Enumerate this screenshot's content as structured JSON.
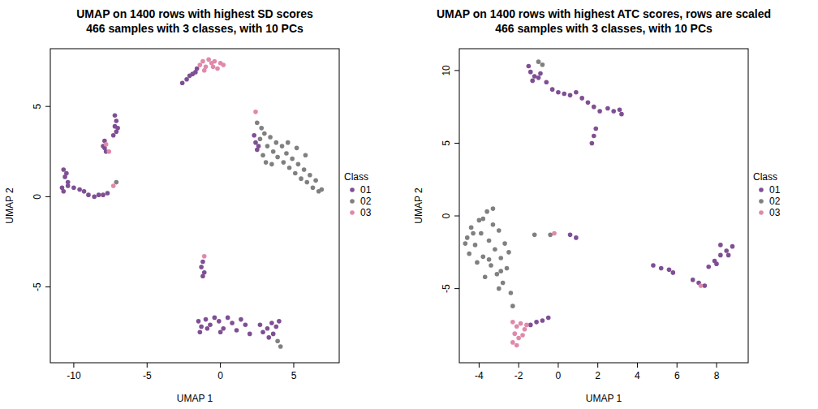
{
  "chart_data": [
    {
      "type": "scatter",
      "title": "UMAP on 1400 rows with highest SD scores",
      "subtitle": "466 samples with 3 classes, with 10 PCs",
      "x_label": "UMAP 1",
      "y_label": "UMAP 2",
      "legend_title": "Class",
      "legend": "right",
      "xlim": [
        -11.6,
        8.1
      ],
      "ylim": [
        -9.2,
        8.2
      ],
      "xticks": [
        -10,
        -5,
        0,
        5
      ],
      "yticks": [
        -5,
        0,
        5
      ],
      "series": [
        {
          "name": "01",
          "color": "#7f4f94",
          "marker": "circle",
          "x": [
            -2.6,
            -2.3,
            -2.1,
            -1.9,
            -1.7,
            -1.6,
            2.3,
            2.4,
            2.5,
            2.6,
            -7.2,
            -7.1,
            -7.2,
            -7.1,
            -7.3,
            -7.0,
            -7.9,
            -8.0,
            -7.8,
            -7.9,
            -10.7,
            -10.5,
            -10.6,
            -10.4,
            -10.8,
            -10.7,
            -10.4,
            -10.0,
            -9.6,
            -9.3,
            -9.0,
            -8.6,
            -8.3,
            -8.0,
            -7.7,
            -1.2,
            -1.3,
            -1.1,
            -1.2,
            -1.5,
            -1.3,
            -1.0,
            -0.7,
            -0.4,
            -0.1,
            0.2,
            0.5,
            0.8,
            1.1,
            1.4,
            1.7,
            2.0,
            -1.4,
            -0.9,
            0.0,
            2.7,
            2.9,
            3.2,
            3.5,
            3.8,
            3.3,
            3.6,
            4.0
          ],
          "y": [
            6.3,
            6.5,
            6.7,
            6.8,
            6.9,
            7.1,
            3.4,
            3.0,
            2.6,
            2.8,
            4.5,
            4.2,
            3.9,
            3.6,
            3.4,
            3.8,
            3.1,
            2.8,
            2.5,
            2.7,
            1.5,
            1.3,
            1.1,
            0.8,
            0.5,
            0.3,
            0.6,
            0.5,
            0.4,
            0.3,
            0.1,
            0.0,
            0.1,
            0.1,
            0.2,
            -3.6,
            -3.9,
            -4.2,
            -4.4,
            -6.9,
            -7.2,
            -6.8,
            -7.1,
            -6.7,
            -6.9,
            -7.3,
            -6.7,
            -7.0,
            -7.4,
            -6.8,
            -7.1,
            -7.6,
            -7.5,
            -7.3,
            -7.5,
            -7.1,
            -7.5,
            -7.3,
            -7.0,
            -7.2,
            -7.8,
            -7.6,
            -6.9
          ]
        },
        {
          "name": "02",
          "color": "#808080",
          "marker": "circle",
          "x": [
            2.5,
            2.8,
            2.7,
            3.0,
            3.2,
            3.4,
            3.6,
            3.8,
            3.9,
            4.2,
            4.3,
            4.5,
            4.7,
            4.9,
            5.1,
            5.3,
            5.5,
            5.7,
            5.9,
            6.1,
            6.3,
            6.5,
            6.7,
            6.9,
            3.1,
            2.9,
            3.5,
            4.6,
            5.2,
            5.8,
            -7.1,
            3.9,
            4.1
          ],
          "y": [
            4.1,
            3.8,
            3.2,
            3.5,
            2.8,
            3.3,
            2.5,
            3.0,
            2.2,
            2.8,
            1.9,
            2.4,
            1.6,
            2.1,
            1.3,
            1.8,
            1.0,
            1.5,
            0.8,
            1.2,
            0.5,
            0.9,
            0.3,
            0.4,
            1.9,
            2.3,
            1.8,
            3.0,
            2.7,
            2.3,
            0.8,
            -8.0,
            -8.3
          ]
        },
        {
          "name": "03",
          "color": "#e089aa",
          "marker": "circle",
          "x": [
            -1.4,
            -1.2,
            -1.0,
            -0.8,
            -0.6,
            -0.4,
            -0.2,
            0.0,
            0.2,
            -1.1,
            -0.5,
            2.4,
            -7.8,
            -7.6,
            -7.3,
            -1.1
          ],
          "y": [
            7.3,
            7.5,
            7.2,
            7.6,
            7.4,
            7.5,
            7.1,
            7.4,
            7.3,
            7.0,
            7.2,
            4.7,
            2.9,
            2.5,
            0.6,
            -3.3
          ]
        }
      ]
    },
    {
      "type": "scatter",
      "title": "UMAP on 1400 rows with highest ATC scores, rows are scaled",
      "subtitle": "466 samples with 3 classes, with 10 PCs",
      "x_label": "UMAP 1",
      "y_label": "UMAP 2",
      "legend_title": "Class",
      "legend": "right",
      "xlim": [
        -5.0,
        9.6
      ],
      "ylim": [
        -10.1,
        11.5
      ],
      "xticks": [
        -4,
        -2,
        0,
        2,
        4,
        6,
        8
      ],
      "yticks": [
        -5,
        0,
        5,
        10
      ],
      "series": [
        {
          "name": "01",
          "color": "#7f4f94",
          "marker": "circle",
          "x": [
            -1.5,
            -1.4,
            -1.2,
            -1.3,
            -1.0,
            -0.9,
            -0.6,
            -0.3,
            0.0,
            0.3,
            0.6,
            0.9,
            1.2,
            1.5,
            1.8,
            2.1,
            2.5,
            2.8,
            3.1,
            3.2,
            1.9,
            1.8,
            1.7,
            0.6,
            0.9,
            -1.4,
            -1.1,
            -0.8,
            -0.5,
            4.8,
            5.2,
            5.6,
            5.8,
            6.8,
            7.1,
            7.4,
            7.6,
            7.9,
            8.2,
            8.5,
            8.8,
            8.2,
            8.6,
            8.0
          ],
          "y": [
            10.3,
            9.9,
            9.6,
            9.3,
            9.5,
            9.8,
            9.2,
            8.7,
            8.5,
            8.4,
            8.3,
            8.5,
            8.1,
            7.8,
            7.5,
            7.2,
            7.4,
            7.2,
            7.3,
            7.0,
            6.0,
            5.5,
            5.0,
            -1.3,
            -1.5,
            -7.5,
            -7.3,
            -7.2,
            -7.0,
            -3.4,
            -3.6,
            -3.7,
            -3.9,
            -4.4,
            -4.6,
            -4.8,
            -3.5,
            -3.1,
            -2.7,
            -2.4,
            -2.1,
            -2.0,
            -2.7,
            -3.3
          ]
        },
        {
          "name": "02",
          "color": "#808080",
          "marker": "circle",
          "x": [
            -1.0,
            -0.8,
            -4.6,
            -4.4,
            -4.2,
            -4.0,
            -3.9,
            -3.8,
            -3.6,
            -3.5,
            -3.4,
            -3.3,
            -3.2,
            -3.1,
            -3.0,
            -2.9,
            -2.8,
            -2.7,
            -2.6,
            -3.7,
            -4.1,
            -4.5,
            -3.3,
            -2.5,
            -2.4,
            -2.3,
            -3.0,
            -4.3,
            -3.8,
            -3.5,
            -2.9,
            -4.7,
            -1.2,
            -0.4
          ],
          "y": [
            10.6,
            10.4,
            -1.5,
            -0.8,
            -2.0,
            -0.3,
            -1.2,
            -2.8,
            0.3,
            -1.7,
            -3.4,
            -0.6,
            -2.3,
            -4.0,
            -1.0,
            -2.9,
            -4.6,
            -1.9,
            -3.6,
            -4.2,
            -3.2,
            -2.6,
            0.5,
            -2.5,
            -5.3,
            -6.2,
            -5.0,
            -1.2,
            -0.2,
            -3.0,
            -3.8,
            -1.9,
            -1.3,
            -1.3
          ]
        },
        {
          "name": "03",
          "color": "#e089aa",
          "marker": "circle",
          "x": [
            -2.3,
            -2.1,
            -1.9,
            -1.7,
            -2.2,
            -2.0,
            -1.8,
            -2.3,
            -2.1,
            -1.6,
            -0.2,
            7.2
          ],
          "y": [
            -7.3,
            -7.6,
            -7.4,
            -7.8,
            -8.1,
            -8.4,
            -8.2,
            -8.7,
            -8.9,
            -7.5,
            -1.2,
            -4.8
          ]
        }
      ]
    }
  ]
}
